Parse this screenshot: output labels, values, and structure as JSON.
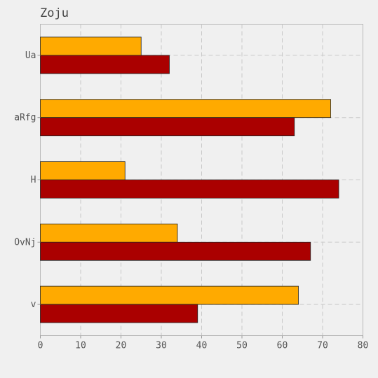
{
  "chart_data": {
    "type": "bar",
    "orientation": "horizontal",
    "title": "Zoju",
    "xlabel": "",
    "ylabel": "",
    "categories": [
      "Ua",
      "aRfg",
      "H",
      "OvNj",
      "v"
    ],
    "series": [
      {
        "color": "#ffaa00",
        "values": [
          25,
          72,
          21,
          34,
          64
        ]
      },
      {
        "color": "#aa0000",
        "values": [
          32,
          63,
          74,
          67,
          39
        ]
      }
    ],
    "xlim": [
      0,
      80
    ],
    "xticks": [
      0,
      10,
      20,
      30,
      40,
      50,
      60,
      70,
      80
    ],
    "grid": true,
    "legend": "none"
  }
}
